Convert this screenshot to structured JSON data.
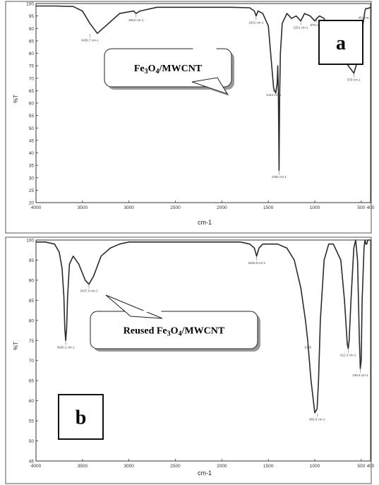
{
  "chart_data": [
    {
      "type": "line",
      "panel_label": "a",
      "callout": {
        "prefix": "Fe",
        "sub1": "3",
        "mid": "O",
        "sub2": "4",
        "suffix": "/MWCNT"
      },
      "xlabel": "cm-1",
      "ylabel": "%T",
      "xlim": [
        4000,
        400
      ],
      "ylim": [
        20,
        100
      ],
      "xticks": [
        "4000",
        "3500",
        "3000",
        "2500",
        "2000",
        "1500",
        "1000",
        "500",
        "400"
      ],
      "yticks": [
        "20",
        "25",
        "30",
        "35",
        "40",
        "45",
        "50",
        "55",
        "60",
        "65",
        "70",
        "75",
        "80",
        "85",
        "90",
        "95",
        "100"
      ],
      "series": [
        {
          "x": [
            4000,
            3800,
            3600,
            3500,
            3420,
            3340,
            3250,
            3100,
            2950,
            2923,
            2880,
            2700,
            2500,
            2300,
            2100,
            1900,
            1700,
            1650,
            1631,
            1610,
            1560,
            1500,
            1470,
            1443,
            1420,
            1405,
            1398,
            1392,
            1384,
            1378,
            1370,
            1350,
            1300,
            1250,
            1200,
            1151,
            1110,
            1050,
            1000,
            979,
            950,
            900,
            860,
            830,
            790,
            760,
            700,
            660,
            579,
            540,
            510,
            480,
            461,
            450,
            430,
            400
          ],
          "y": [
            99,
            99,
            98.8,
            97,
            92,
            88,
            91,
            96,
            97,
            96,
            97,
            98.5,
            98.5,
            98.5,
            98.5,
            98.5,
            98.3,
            97,
            95,
            97,
            96,
            91,
            78,
            66,
            64,
            68,
            75,
            65,
            33,
            62,
            80,
            92,
            96,
            94,
            95,
            93,
            96,
            95,
            93,
            94,
            95,
            94,
            89,
            90,
            88,
            85,
            80,
            76,
            72,
            77,
            84,
            92,
            97,
            98,
            98,
            98.5
          ]
        }
      ],
      "annotations": [
        {
          "text": "3439.7 cm-1",
          "x": 3420,
          "y": 88
        },
        {
          "text": "2923 cm-1",
          "x": 2923,
          "y": 96
        },
        {
          "text": "1631 cm-1",
          "x": 1631,
          "y": 95
        },
        {
          "text": "1443 cm-1",
          "x": 1443,
          "y": 66
        },
        {
          "text": "1384 cm-1",
          "x": 1384,
          "y": 33
        },
        {
          "text": "1151 cm-1",
          "x": 1151,
          "y": 93
        },
        {
          "text": "979 cm-1",
          "x": 979,
          "y": 94
        },
        {
          "text": "830 cm-1",
          "x": 830,
          "y": 90
        },
        {
          "text": "579 cm-1",
          "x": 579,
          "y": 72
        },
        {
          "text": "461 cm-1",
          "x": 461,
          "y": 97
        }
      ]
    },
    {
      "type": "line",
      "panel_label": "b",
      "callout": {
        "prefix": "Reused Fe",
        "sub1": "3",
        "mid": "O",
        "sub2": "4",
        "suffix": "/MWCNT"
      },
      "xlabel": "cm-1",
      "ylabel": "%T",
      "xlim": [
        4000,
        400
      ],
      "ylim": [
        45,
        100
      ],
      "xticks": [
        "4000",
        "3500",
        "3000",
        "2500",
        "2000",
        "1500",
        "1000",
        "500",
        "400"
      ],
      "yticks": [
        "45",
        "50",
        "55",
        "60",
        "65",
        "70",
        "75",
        "80",
        "85",
        "90",
        "95",
        "100"
      ],
      "series": [
        {
          "x": [
            4000,
            3900,
            3800,
            3750,
            3720,
            3700,
            3690,
            3680,
            3670,
            3660,
            3640,
            3600,
            3540,
            3470,
            3430,
            3380,
            3300,
            3200,
            3100,
            3000,
            2900,
            2800,
            2700,
            2600,
            2500,
            2400,
            2300,
            2200,
            2100,
            2000,
            1900,
            1800,
            1700,
            1650,
            1626,
            1600,
            1560,
            1500,
            1400,
            1300,
            1220,
            1150,
            1100,
            1076,
            1040,
            1000,
            975,
            960,
            940,
            900,
            850,
            800,
            760,
            720,
            680,
            650,
            640,
            630,
            610,
            580,
            560,
            540,
            530,
            520,
            510,
            500,
            490,
            470,
            460,
            450,
            440,
            430,
            400
          ],
          "y": [
            99.5,
            99.5,
            99,
            97,
            93,
            86,
            78,
            75,
            78,
            86,
            94,
            96,
            94,
            90,
            89,
            91,
            96,
            98,
            99,
            99.5,
            99.5,
            99.5,
            99.5,
            99.5,
            99.5,
            99.5,
            99.5,
            99.5,
            99.5,
            99.5,
            99.5,
            99.5,
            99,
            98,
            96,
            98,
            99,
            99,
            99,
            98,
            95,
            88,
            80,
            75,
            65,
            57,
            58,
            65,
            80,
            95,
            99,
            99,
            97,
            95,
            85,
            74,
            73,
            75,
            85,
            98,
            100,
            95,
            85,
            75,
            68,
            70,
            85,
            98,
            100,
            99,
            99,
            100,
            100
          ]
        }
      ],
      "annotations": [
        {
          "text": "3690.1 cm-1",
          "x": 3680,
          "y": 75
        },
        {
          "text": "3437.0 cm-1",
          "x": 3430,
          "y": 89
        },
        {
          "text": "1626.9 cm-1",
          "x": 1626,
          "y": 96
        },
        {
          "text": "1076",
          "x": 1076,
          "y": 75
        },
        {
          "text": "960.0 cm-1",
          "x": 975,
          "y": 57
        },
        {
          "text": "612.3 cm-1",
          "x": 640,
          "y": 73
        },
        {
          "text": "438.9 cm-1",
          "x": 510,
          "y": 68
        }
      ]
    }
  ]
}
